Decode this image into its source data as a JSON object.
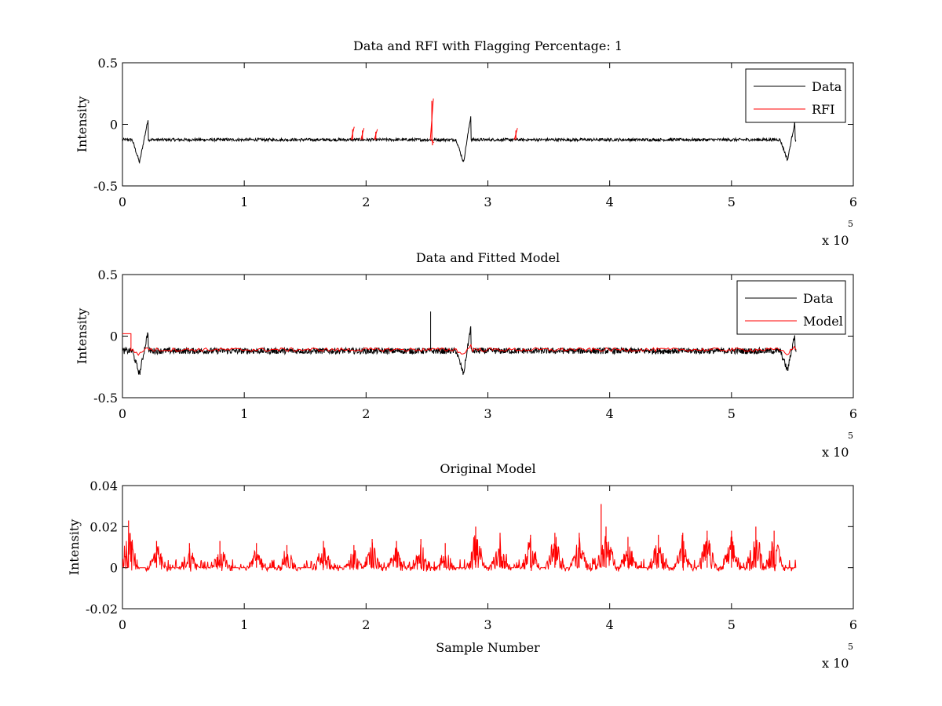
{
  "chart_data": [
    {
      "type": "line",
      "title": "Data and RFI with Flagging Percentage: 1",
      "xlabel": "",
      "ylabel": "Intensity",
      "xlim": [
        0,
        600000
      ],
      "ylim": [
        -0.5,
        0.5
      ],
      "xticks": [
        0,
        1,
        2,
        3,
        4,
        5,
        6
      ],
      "xtick_labels": [
        "0",
        "1",
        "2",
        "3",
        "4",
        "5",
        "6"
      ],
      "yticks": [
        -0.5,
        0,
        0.5
      ],
      "ytick_labels": [
        "-0.5",
        "0",
        "0.5"
      ],
      "x_multiplier": "x 10",
      "x_multiplier_exp": "5",
      "legend_position": "top-right",
      "series": [
        {
          "name": "Data",
          "color": "#000000",
          "baseline": -0.125,
          "noise": 0.012,
          "x_end": 553000,
          "dips": [
            [
              14000,
              -0.31
            ],
            [
              280000,
              -0.31
            ],
            [
              546000,
              -0.29
            ]
          ],
          "peaks": [
            [
              21000,
              0.04
            ],
            [
              286000,
              0.07
            ],
            [
              552000,
              0.02
            ]
          ]
        },
        {
          "name": "RFI",
          "color": "#ff0000",
          "spikes": [
            [
              189000,
              -0.04
            ],
            [
              197000,
              -0.05
            ],
            [
              208000,
              -0.06
            ],
            [
              254000,
              0.19
            ],
            [
              254500,
              -0.17
            ],
            [
              323000,
              -0.05
            ]
          ]
        }
      ]
    },
    {
      "type": "line",
      "title": "Data and Fitted Model",
      "xlabel": "",
      "ylabel": "Intensity",
      "xlim": [
        0,
        600000
      ],
      "ylim": [
        -0.5,
        0.5
      ],
      "xticks": [
        0,
        1,
        2,
        3,
        4,
        5,
        6
      ],
      "xtick_labels": [
        "0",
        "1",
        "2",
        "3",
        "4",
        "5",
        "6"
      ],
      "yticks": [
        -0.5,
        0,
        0.5
      ],
      "ytick_labels": [
        "-0.5",
        "0",
        "0.5"
      ],
      "x_multiplier": "x 10",
      "x_multiplier_exp": "5",
      "legend_position": "top-right",
      "series": [
        {
          "name": "Data",
          "color": "#000000",
          "baseline": -0.12,
          "noise": 0.025,
          "x_end": 553000,
          "dips": [
            [
              14000,
              -0.31
            ],
            [
              280000,
              -0.31
            ],
            [
              546000,
              -0.28
            ]
          ],
          "peaks": [
            [
              21000,
              0.04
            ],
            [
              286000,
              0.08
            ],
            [
              552000,
              0.02
            ]
          ],
          "spike": [
            253000,
            0.2
          ]
        },
        {
          "name": "Model",
          "color": "#ff0000",
          "baseline": -0.11,
          "x_end": 553000,
          "start_level": 0.02,
          "start_end": 7000
        }
      ]
    },
    {
      "type": "line",
      "title": "Original Model",
      "xlabel": "Sample Number",
      "ylabel": "Intensity",
      "xlim": [
        0,
        600000
      ],
      "ylim": [
        -0.02,
        0.04
      ],
      "xticks": [
        0,
        1,
        2,
        3,
        4,
        5,
        6
      ],
      "xtick_labels": [
        "0",
        "1",
        "2",
        "3",
        "4",
        "5",
        "6"
      ],
      "yticks": [
        -0.02,
        0,
        0.02,
        0.04
      ],
      "ytick_labels": [
        "-0.02",
        "0",
        "0.02",
        "0.04"
      ],
      "x_multiplier": "x 10",
      "x_multiplier_exp": "5",
      "series": [
        {
          "color": "#ff0000",
          "x_end": 553000,
          "burst_peaks": [
            [
              5000,
              0.023
            ],
            [
              28000,
              0.013
            ],
            [
              55000,
              0.012
            ],
            [
              80000,
              0.013
            ],
            [
              110000,
              0.012
            ],
            [
              135000,
              0.011
            ],
            [
              165000,
              0.013
            ],
            [
              190000,
              0.011
            ],
            [
              205000,
              0.014
            ],
            [
              225000,
              0.013
            ],
            [
              245000,
              0.014
            ],
            [
              265000,
              0.012
            ],
            [
              290000,
              0.02
            ],
            [
              310000,
              0.017
            ],
            [
              335000,
              0.016
            ],
            [
              355000,
              0.017
            ],
            [
              375000,
              0.017
            ],
            [
              393000,
              0.031
            ],
            [
              397000,
              0.02
            ],
            [
              415000,
              0.015
            ],
            [
              440000,
              0.016
            ],
            [
              460000,
              0.017
            ],
            [
              480000,
              0.018
            ],
            [
              500000,
              0.018
            ],
            [
              520000,
              0.02
            ],
            [
              535000,
              0.018
            ]
          ]
        }
      ]
    }
  ]
}
